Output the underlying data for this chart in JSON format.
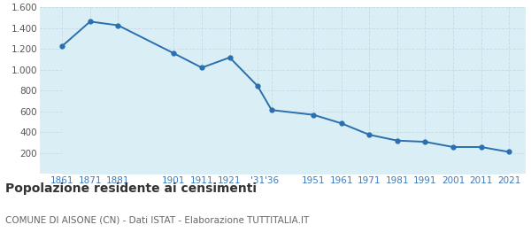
{
  "years": [
    1861,
    1871,
    1881,
    1901,
    1911,
    1921,
    1931,
    1936,
    1951,
    1961,
    1971,
    1981,
    1991,
    2001,
    2011,
    2021
  ],
  "population": [
    1228,
    1464,
    1428,
    1158,
    1020,
    1118,
    843,
    612,
    566,
    484,
    374,
    318,
    306,
    256,
    256,
    209
  ],
  "line_color": "#2a6faf",
  "fill_color": "#daeef6",
  "marker_color": "#2a6faf",
  "background_color": "#ffffff",
  "grid_color": "#c8d8e8",
  "title": "Popolazione residente ai censimenti",
  "subtitle": "COMUNE DI AISONE (CN) - Dati ISTAT - Elaborazione TUTTITALIA.IT",
  "ylim": [
    0,
    1600
  ],
  "yticks": [
    200,
    400,
    600,
    800,
    1000,
    1200,
    1400,
    1600
  ],
  "xtick_positions": [
    1861,
    1871,
    1881,
    1901,
    1911,
    1921,
    1931,
    1936,
    1951,
    1961,
    1971,
    1981,
    1991,
    2001,
    2011,
    2021
  ],
  "xtick_labels": [
    "1861",
    "1871",
    "1881",
    "1901",
    "1911",
    "1921",
    "'31",
    "'36",
    "1951",
    "1961",
    "1971",
    "1981",
    "1991",
    "2001",
    "2011",
    "2021"
  ],
  "title_fontsize": 10,
  "subtitle_fontsize": 7.5,
  "axis_label_color": "#3a7abf",
  "ytick_label_color": "#555555",
  "tick_fontsize": 7.5,
  "xlim": [
    1853,
    2027
  ]
}
